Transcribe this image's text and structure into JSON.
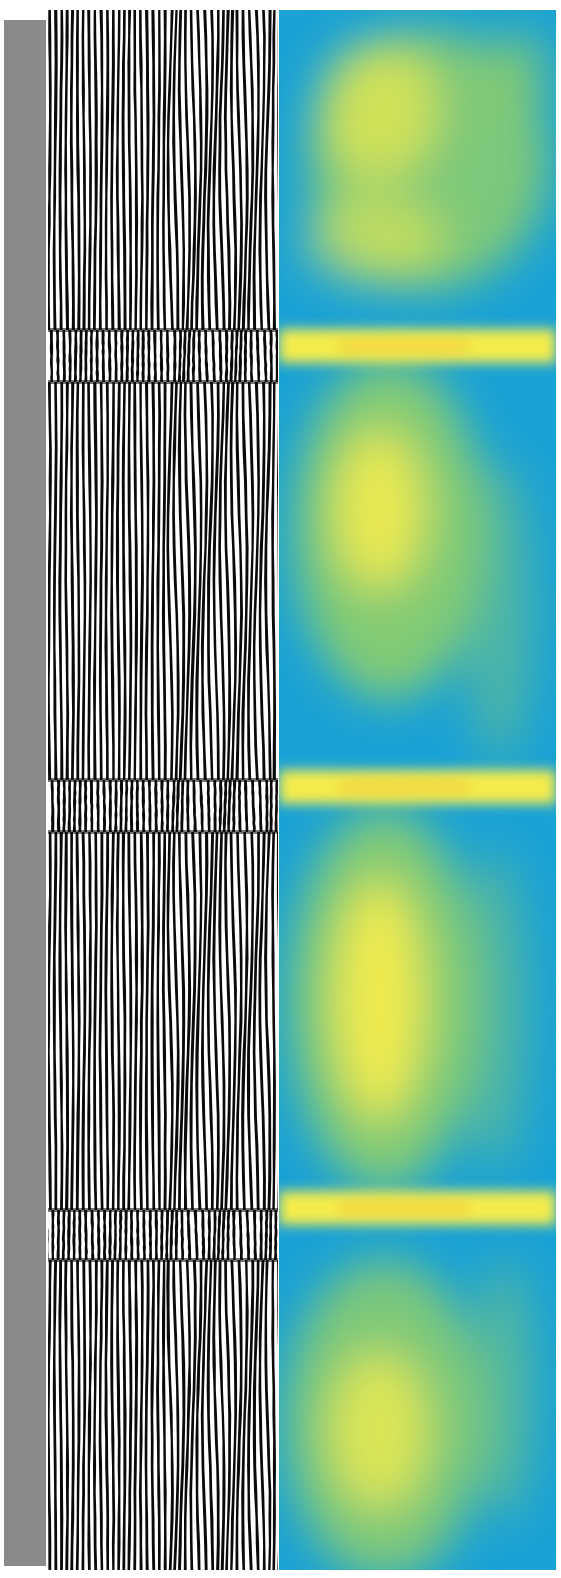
{
  "colors": {
    "background": "#ffffff",
    "strip": "#8a8a8a",
    "stripe_dark": "#0a0a0a",
    "stripe_light": "#ffffff",
    "heat_low": "#1aa2d6",
    "heat_mid": "#8fcf6a",
    "heat_high": "#f4ec4c",
    "band_core": "#f2c53a"
  },
  "panels": [
    {
      "name": "gray-strip"
    },
    {
      "name": "stripe-pattern",
      "pattern": "vertical-fringes",
      "fringe_count": 40
    },
    {
      "name": "heatmap",
      "colormap": "blue-green-yellow",
      "segments": 4,
      "bright_bands": 3
    }
  ]
}
